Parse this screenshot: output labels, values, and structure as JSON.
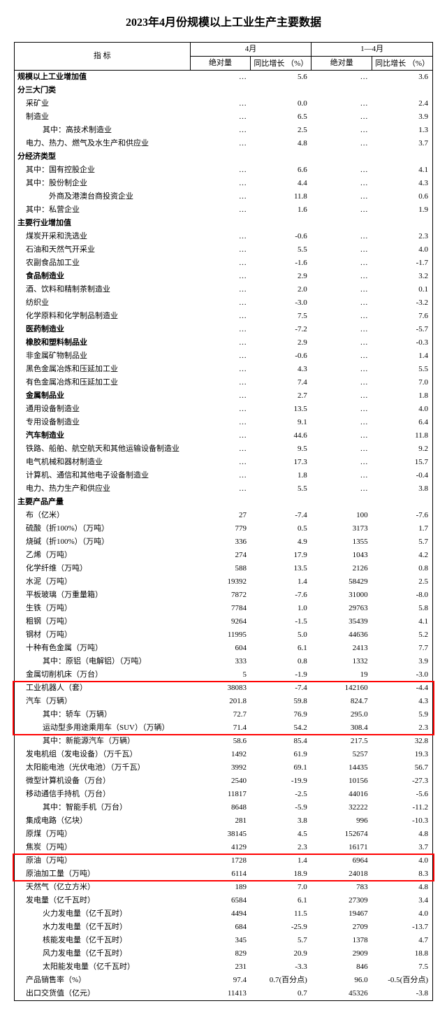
{
  "title": "2023年4月份规模以上工业生产主要数据",
  "header": {
    "indicator": "指 标",
    "month": "4月",
    "ytd": "1—4月",
    "abs": "绝对量",
    "yoy": "同比增长\n（%）"
  },
  "highlight_color": "#ff0000",
  "highlights": [
    {
      "start": 46,
      "end": 49
    },
    {
      "start": 59,
      "end": 60
    }
  ],
  "rows": [
    {
      "l": "规模以上工业增加值",
      "b": 1,
      "i": 0,
      "v": [
        "…",
        "5.6",
        "…",
        "3.6"
      ]
    },
    {
      "l": "分三大门类",
      "b": 1,
      "i": 0,
      "v": [
        "",
        "",
        "",
        ""
      ]
    },
    {
      "l": "采矿业",
      "i": 1,
      "v": [
        "…",
        "0.0",
        "…",
        "2.4"
      ]
    },
    {
      "l": "制造业",
      "i": 1,
      "v": [
        "…",
        "6.5",
        "…",
        "3.9"
      ]
    },
    {
      "l": "其中：高技术制造业",
      "i": 2,
      "v": [
        "…",
        "2.5",
        "…",
        "1.3"
      ]
    },
    {
      "l": "电力、热力、燃气及水生产和供应业",
      "i": 1,
      "v": [
        "…",
        "4.8",
        "…",
        "3.7"
      ]
    },
    {
      "l": "分经济类型",
      "b": 1,
      "i": 0,
      "v": [
        "",
        "",
        "",
        ""
      ]
    },
    {
      "l": "其中：国有控股企业",
      "i": 1,
      "v": [
        "…",
        "6.6",
        "…",
        "4.1"
      ]
    },
    {
      "l": "其中：股份制企业",
      "i": 1,
      "v": [
        "…",
        "4.4",
        "…",
        "4.3"
      ]
    },
    {
      "l": "　　　外商及港澳台商投资企业",
      "i": 1,
      "v": [
        "…",
        "11.8",
        "…",
        "0.6"
      ]
    },
    {
      "l": "其中：私营企业",
      "i": 1,
      "v": [
        "…",
        "1.6",
        "…",
        "1.9"
      ]
    },
    {
      "l": "主要行业增加值",
      "b": 1,
      "i": 0,
      "v": [
        "",
        "",
        "",
        ""
      ]
    },
    {
      "l": "煤炭开采和洗选业",
      "i": 1,
      "v": [
        "…",
        "-0.6",
        "…",
        "2.3"
      ]
    },
    {
      "l": "石油和天然气开采业",
      "i": 1,
      "v": [
        "…",
        "5.5",
        "…",
        "4.0"
      ]
    },
    {
      "l": "农副食品加工业",
      "i": 1,
      "v": [
        "…",
        "-1.6",
        "…",
        "-1.7"
      ]
    },
    {
      "l": "食品制造业",
      "b": 1,
      "i": 1,
      "v": [
        "…",
        "2.9",
        "…",
        "3.2"
      ]
    },
    {
      "l": "酒、饮料和精制茶制造业",
      "i": 1,
      "v": [
        "…",
        "2.0",
        "…",
        "0.1"
      ]
    },
    {
      "l": "纺织业",
      "i": 1,
      "v": [
        "…",
        "-3.0",
        "…",
        "-3.2"
      ]
    },
    {
      "l": "化学原料和化学制品制造业",
      "i": 1,
      "v": [
        "…",
        "7.5",
        "…",
        "7.6"
      ]
    },
    {
      "l": "医药制造业",
      "b": 1,
      "i": 1,
      "v": [
        "…",
        "-7.2",
        "…",
        "-5.7"
      ]
    },
    {
      "l": "橡胶和塑料制品业",
      "b": 1,
      "i": 1,
      "v": [
        "…",
        "2.9",
        "…",
        "-0.3"
      ]
    },
    {
      "l": "非金属矿物制品业",
      "i": 1,
      "v": [
        "…",
        "-0.6",
        "…",
        "1.4"
      ]
    },
    {
      "l": "黑色金属冶炼和压延加工业",
      "i": 1,
      "v": [
        "…",
        "4.3",
        "…",
        "5.5"
      ]
    },
    {
      "l": "有色金属冶炼和压延加工业",
      "i": 1,
      "v": [
        "…",
        "7.4",
        "…",
        "7.0"
      ]
    },
    {
      "l": "金属制品业",
      "b": 1,
      "i": 1,
      "v": [
        "…",
        "2.7",
        "…",
        "1.8"
      ]
    },
    {
      "l": "通用设备制造业",
      "i": 1,
      "v": [
        "…",
        "13.5",
        "…",
        "4.0"
      ]
    },
    {
      "l": "专用设备制造业",
      "i": 1,
      "v": [
        "…",
        "9.1",
        "…",
        "6.4"
      ]
    },
    {
      "l": "汽车制造业",
      "b": 1,
      "i": 1,
      "v": [
        "…",
        "44.6",
        "…",
        "11.8"
      ]
    },
    {
      "l": "铁路、船舶、航空航天和其他运输设备制造业",
      "i": 1,
      "v": [
        "…",
        "9.5",
        "…",
        "9.2"
      ]
    },
    {
      "l": "电气机械和器材制造业",
      "i": 1,
      "v": [
        "…",
        "17.3",
        "…",
        "15.7"
      ]
    },
    {
      "l": "计算机、通信和其他电子设备制造业",
      "i": 1,
      "v": [
        "…",
        "1.8",
        "…",
        "-0.4"
      ]
    },
    {
      "l": "电力、热力生产和供应业",
      "i": 1,
      "v": [
        "…",
        "5.5",
        "…",
        "3.8"
      ]
    },
    {
      "l": "主要产品产量",
      "b": 1,
      "i": 0,
      "v": [
        "",
        "",
        "",
        ""
      ]
    },
    {
      "l": "布（亿米）",
      "i": 1,
      "v": [
        "27",
        "-7.4",
        "100",
        "-7.6"
      ]
    },
    {
      "l": "硫酸（折100%）（万吨）",
      "i": 1,
      "v": [
        "779",
        "0.5",
        "3173",
        "1.7"
      ]
    },
    {
      "l": "烧碱（折100%）（万吨）",
      "i": 1,
      "v": [
        "336",
        "4.9",
        "1355",
        "5.7"
      ]
    },
    {
      "l": "乙烯（万吨）",
      "i": 1,
      "v": [
        "274",
        "17.9",
        "1043",
        "4.2"
      ]
    },
    {
      "l": "化学纤维（万吨）",
      "i": 1,
      "v": [
        "588",
        "13.5",
        "2126",
        "0.8"
      ]
    },
    {
      "l": "水泥（万吨）",
      "i": 1,
      "v": [
        "19392",
        "1.4",
        "58429",
        "2.5"
      ]
    },
    {
      "l": "平板玻璃（万重量箱）",
      "i": 1,
      "v": [
        "7872",
        "-7.6",
        "31000",
        "-8.0"
      ]
    },
    {
      "l": "生铁（万吨）",
      "i": 1,
      "v": [
        "7784",
        "1.0",
        "29763",
        "5.8"
      ]
    },
    {
      "l": "粗钢（万吨）",
      "i": 1,
      "v": [
        "9264",
        "-1.5",
        "35439",
        "4.1"
      ]
    },
    {
      "l": "钢材（万吨）",
      "i": 1,
      "v": [
        "11995",
        "5.0",
        "44636",
        "5.2"
      ]
    },
    {
      "l": "十种有色金属（万吨）",
      "i": 1,
      "v": [
        "604",
        "6.1",
        "2413",
        "7.7"
      ]
    },
    {
      "l": "其中：原铝（电解铝）（万吨）",
      "i": 2,
      "v": [
        "333",
        "0.8",
        "1332",
        "3.9"
      ]
    },
    {
      "l": "金属切削机床（万台）",
      "i": 1,
      "v": [
        "5",
        "-1.9",
        "19",
        "-3.0"
      ]
    },
    {
      "l": "工业机器人（套）",
      "i": 1,
      "v": [
        "38083",
        "-7.4",
        "142160",
        "-4.4"
      ]
    },
    {
      "l": "汽车（万辆）",
      "i": 1,
      "v": [
        "201.8",
        "59.8",
        "824.7",
        "4.3"
      ]
    },
    {
      "l": "其中：轿车（万辆）",
      "i": 2,
      "v": [
        "72.7",
        "76.9",
        "295.0",
        "5.9"
      ]
    },
    {
      "l": "运动型多用途乘用车（SUV）（万辆）",
      "i": 2,
      "v": [
        "71.4",
        "54.2",
        "308.4",
        "2.3"
      ]
    },
    {
      "l": "其中：新能源汽车（万辆）",
      "i": 2,
      "v": [
        "58.6",
        "85.4",
        "217.5",
        "32.8"
      ]
    },
    {
      "l": "发电机组（发电设备）（万千瓦）",
      "i": 1,
      "v": [
        "1492",
        "61.9",
        "5257",
        "19.3"
      ]
    },
    {
      "l": "太阳能电池（光伏电池）（万千瓦）",
      "i": 1,
      "v": [
        "3992",
        "69.1",
        "14435",
        "56.7"
      ]
    },
    {
      "l": "微型计算机设备（万台）",
      "i": 1,
      "v": [
        "2540",
        "-19.9",
        "10156",
        "-27.3"
      ]
    },
    {
      "l": "移动通信手持机（万台）",
      "i": 1,
      "v": [
        "11817",
        "-2.5",
        "44016",
        "-5.6"
      ]
    },
    {
      "l": "其中：智能手机（万台）",
      "i": 2,
      "v": [
        "8648",
        "-5.9",
        "32222",
        "-11.2"
      ]
    },
    {
      "l": "集成电路（亿块）",
      "i": 1,
      "v": [
        "281",
        "3.8",
        "996",
        "-10.3"
      ]
    },
    {
      "l": "原煤（万吨）",
      "i": 1,
      "v": [
        "38145",
        "4.5",
        "152674",
        "4.8"
      ]
    },
    {
      "l": "焦炭（万吨）",
      "i": 1,
      "v": [
        "4129",
        "2.3",
        "16171",
        "3.7"
      ]
    },
    {
      "l": "原油（万吨）",
      "i": 1,
      "v": [
        "1728",
        "1.4",
        "6964",
        "4.0"
      ]
    },
    {
      "l": "原油加工量（万吨）",
      "i": 1,
      "v": [
        "6114",
        "18.9",
        "24018",
        "8.3"
      ]
    },
    {
      "l": "天然气（亿立方米）",
      "i": 1,
      "v": [
        "189",
        "7.0",
        "783",
        "4.8"
      ]
    },
    {
      "l": "发电量（亿千瓦时）",
      "i": 1,
      "v": [
        "6584",
        "6.1",
        "27309",
        "3.4"
      ]
    },
    {
      "l": "火力发电量（亿千瓦时）",
      "i": 2,
      "v": [
        "4494",
        "11.5",
        "19467",
        "4.0"
      ]
    },
    {
      "l": "水力发电量（亿千瓦时）",
      "i": 2,
      "v": [
        "684",
        "-25.9",
        "2709",
        "-13.7"
      ]
    },
    {
      "l": "核能发电量（亿千瓦时）",
      "i": 2,
      "v": [
        "345",
        "5.7",
        "1378",
        "4.7"
      ]
    },
    {
      "l": "风力发电量（亿千瓦时）",
      "i": 2,
      "v": [
        "829",
        "20.9",
        "2909",
        "18.8"
      ]
    },
    {
      "l": "太阳能发电量（亿千瓦时）",
      "i": 2,
      "v": [
        "231",
        "-3.3",
        "846",
        "7.5"
      ]
    },
    {
      "l": "产品销售率（%）",
      "i": 1,
      "v": [
        "97.4",
        "0.7(百分点)",
        "96.0",
        "-0.5(百分点)"
      ]
    },
    {
      "l": "出口交货值（亿元）",
      "i": 1,
      "v": [
        "11413",
        "0.7",
        "45326",
        "-3.8"
      ]
    }
  ]
}
